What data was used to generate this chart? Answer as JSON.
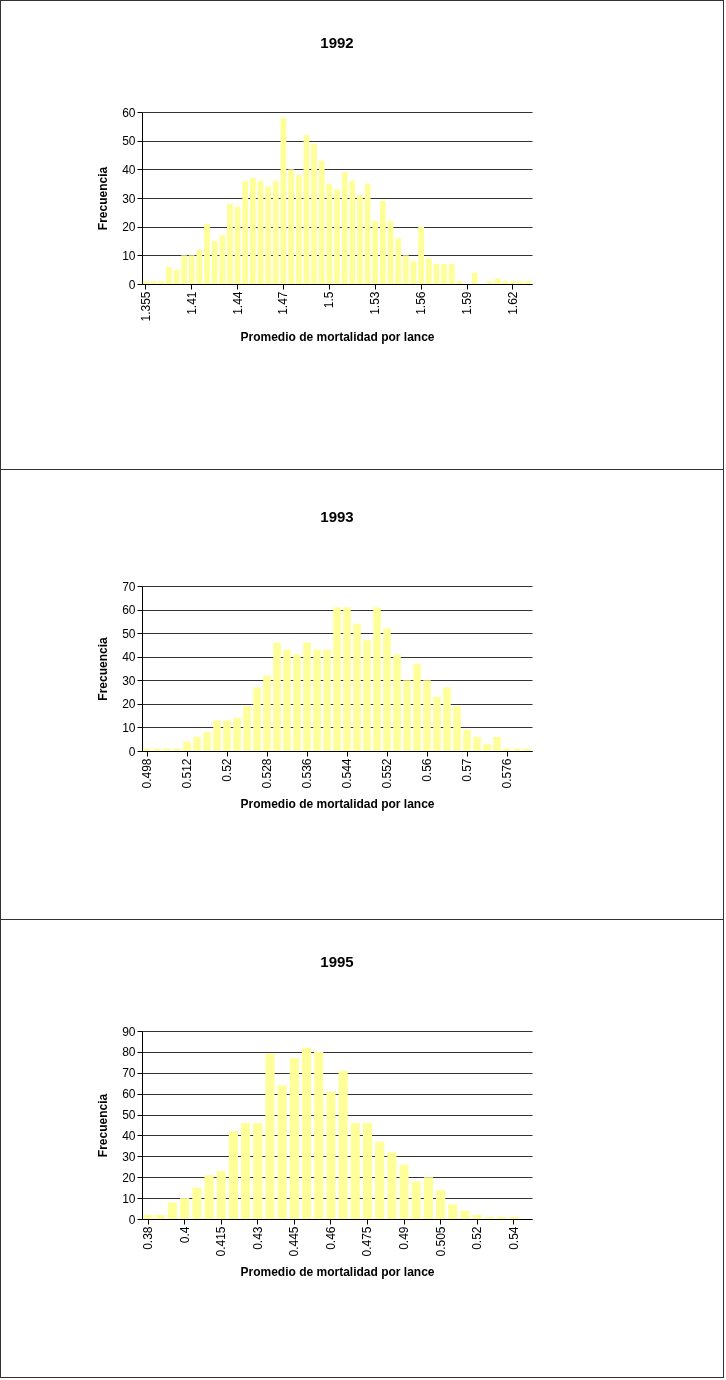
{
  "chart_data": [
    {
      "type": "bar",
      "title": "1992",
      "xlabel": "Promedio de mortalidad por lance",
      "ylabel": "Frecuencia",
      "color": "#ffff99",
      "ylim": [
        0,
        60
      ],
      "yticks": [
        0,
        10,
        20,
        30,
        40,
        50,
        60
      ],
      "grid": "y",
      "categories": [
        "1.355",
        null,
        null,
        null,
        null,
        null,
        "1.41",
        null,
        null,
        null,
        null,
        null,
        "1.44",
        null,
        null,
        null,
        null,
        null,
        "1.47",
        null,
        null,
        null,
        null,
        null,
        "1.5",
        null,
        null,
        null,
        null,
        null,
        "1.53",
        null,
        null,
        null,
        null,
        null,
        "1.56",
        null,
        null,
        null,
        null,
        null,
        "1.59",
        null,
        null,
        null,
        null,
        null,
        "1.62",
        null,
        null
      ],
      "values": [
        1,
        1,
        1,
        6,
        5,
        10,
        10,
        12,
        21,
        15,
        17,
        28,
        27,
        36,
        37,
        36,
        34,
        36,
        58,
        40,
        38,
        52,
        49,
        43,
        35,
        33,
        39,
        36,
        31,
        35,
        22,
        29,
        22,
        16,
        10,
        8,
        20,
        9,
        7,
        7,
        7,
        1,
        0,
        4,
        0,
        1,
        2,
        1,
        1,
        1,
        1
      ]
    },
    {
      "type": "bar",
      "title": "1993",
      "xlabel": "Promedio de mortalidad por lance",
      "ylabel": "Frecuencia",
      "color": "#ffff99",
      "ylim": [
        0,
        70
      ],
      "yticks": [
        0,
        10,
        20,
        30,
        40,
        50,
        60,
        70
      ],
      "grid": "y",
      "categories": [
        "0.498",
        null,
        null,
        null,
        "0.512",
        null,
        null,
        null,
        "0.52",
        null,
        null,
        null,
        "0.528",
        null,
        null,
        null,
        "0.536",
        null,
        null,
        null,
        "0.544",
        null,
        null,
        null,
        "0.552",
        null,
        null,
        null,
        "0.56",
        null,
        null,
        null,
        "0.57",
        null,
        null,
        null,
        "0.576",
        null,
        null
      ],
      "values": [
        1,
        1,
        1,
        1,
        4,
        6,
        8,
        13,
        13,
        14,
        19,
        27,
        32,
        46,
        43,
        41,
        46,
        43,
        43,
        61,
        61,
        54,
        47,
        61,
        52,
        41,
        30,
        37,
        30,
        23,
        27,
        19,
        9,
        6,
        3,
        6,
        1,
        1,
        1
      ]
    },
    {
      "type": "bar",
      "title": "1995",
      "xlabel": "Promedio de mortalidad por lance",
      "ylabel": "Frecuencia",
      "color": "#ffff99",
      "ylim": [
        0,
        90
      ],
      "yticks": [
        0,
        10,
        20,
        30,
        40,
        50,
        60,
        70,
        80,
        90
      ],
      "grid": "y",
      "categories": [
        "0.38",
        null,
        null,
        "0.4",
        null,
        null,
        "0.415",
        null,
        null,
        "0.43",
        null,
        null,
        "0.445",
        null,
        null,
        "0.46",
        null,
        null,
        "0.475",
        null,
        null,
        "0.49",
        null,
        null,
        "0.505",
        null,
        null,
        "0.52",
        null,
        null,
        "0.54",
        null
      ],
      "values": [
        2,
        2,
        8,
        10,
        15,
        21,
        23,
        42,
        46,
        46,
        79,
        64,
        77,
        82,
        80,
        61,
        71,
        46,
        46,
        37,
        32,
        26,
        18,
        20,
        14,
        7,
        4,
        2,
        1,
        1,
        1,
        0
      ]
    }
  ]
}
